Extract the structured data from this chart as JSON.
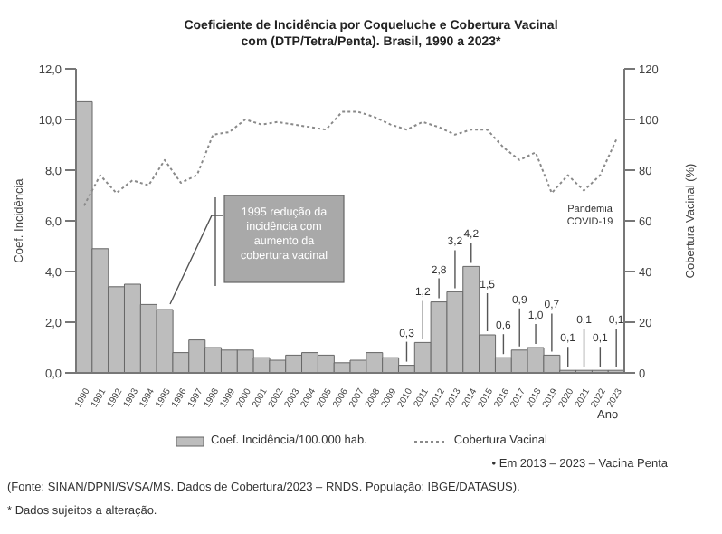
{
  "chart_data": {
    "type": "bar",
    "title": "Coeficiente de Incidência por Coqueluche e Cobertura Vacinal com (DTP/Tetra/Penta). Brasil, 1990 a 2023*",
    "xlabel": "Ano",
    "ylabel": "Coef. Incidência",
    "y2label": "Cobertura Vacinal (%)",
    "categories": [
      "1990",
      "1991",
      "1992",
      "1993",
      "1994",
      "1995",
      "1996",
      "1997",
      "1998",
      "1999",
      "2000",
      "2001",
      "2002",
      "2003",
      "2004",
      "2005",
      "2006",
      "2007",
      "2008",
      "2009",
      "2010",
      "2011",
      "2012",
      "2013",
      "2014",
      "2015",
      "2016",
      "2017",
      "2018",
      "2019",
      "2020",
      "2021",
      "2022",
      "2023"
    ],
    "series": [
      {
        "name": "Coef. Incidência/100.000 hab.",
        "type": "bar",
        "color": "#bdbdbd",
        "values": [
          10.7,
          4.9,
          3.4,
          3.5,
          2.7,
          2.5,
          0.8,
          1.3,
          1.0,
          0.9,
          0.9,
          0.6,
          0.5,
          0.7,
          0.8,
          0.7,
          0.4,
          0.5,
          0.8,
          0.6,
          0.3,
          1.2,
          2.8,
          3.2,
          4.2,
          1.5,
          0.6,
          0.9,
          1.0,
          0.7,
          0.1,
          0.1,
          0.1,
          0.1
        ],
        "value_labels": [
          null,
          null,
          null,
          null,
          null,
          null,
          null,
          null,
          null,
          null,
          null,
          null,
          null,
          null,
          null,
          null,
          null,
          null,
          null,
          null,
          "0,3",
          "1,2",
          "2,8",
          "3,2",
          "4,2",
          "1,5",
          "0,6",
          "0,9",
          "1,0",
          "0,7",
          "0,1",
          "0,1",
          "0,1",
          "0,1"
        ]
      },
      {
        "name": "Cobertura Vacinal",
        "type": "line",
        "axis": "y2",
        "color": "#8a8a8a",
        "line_style": "dotted",
        "values": [
          66,
          78,
          71,
          76,
          74,
          84,
          75,
          78,
          94,
          95,
          100,
          98,
          99,
          98,
          97,
          96,
          103,
          103,
          101,
          98,
          96,
          99,
          97,
          94,
          96,
          96,
          89,
          84,
          87,
          71,
          78,
          72,
          78,
          92
        ]
      }
    ],
    "ylim": [
      0,
      12
    ],
    "yticks": [
      {
        "value": 0,
        "label": "0,0"
      },
      {
        "value": 2,
        "label": "2,0"
      },
      {
        "value": 4,
        "label": "4,0"
      },
      {
        "value": 6,
        "label": "6,0"
      },
      {
        "value": 8,
        "label": "8,0"
      },
      {
        "value": 10,
        "label": "10,0"
      },
      {
        "value": 12,
        "label": "12,0"
      }
    ],
    "y2lim": [
      0,
      120
    ],
    "y2ticks": [
      0,
      20,
      40,
      60,
      80,
      100,
      120
    ],
    "marker": "none",
    "grid": false,
    "legend": "bottom",
    "annotations": [
      "1995 redução da incidência com aumento da cobertura vacinal",
      "Pandemia COVID-19",
      "• Em 2013 – 2023 – Vacina Penta",
      "(Fonte: SINAN/DPNI/SVSA/MS. Dados de Cobertura/2023 – RNDS. População: IBGE/DATASUS).",
      "* Dados sujeitos a alteração."
    ]
  }
}
